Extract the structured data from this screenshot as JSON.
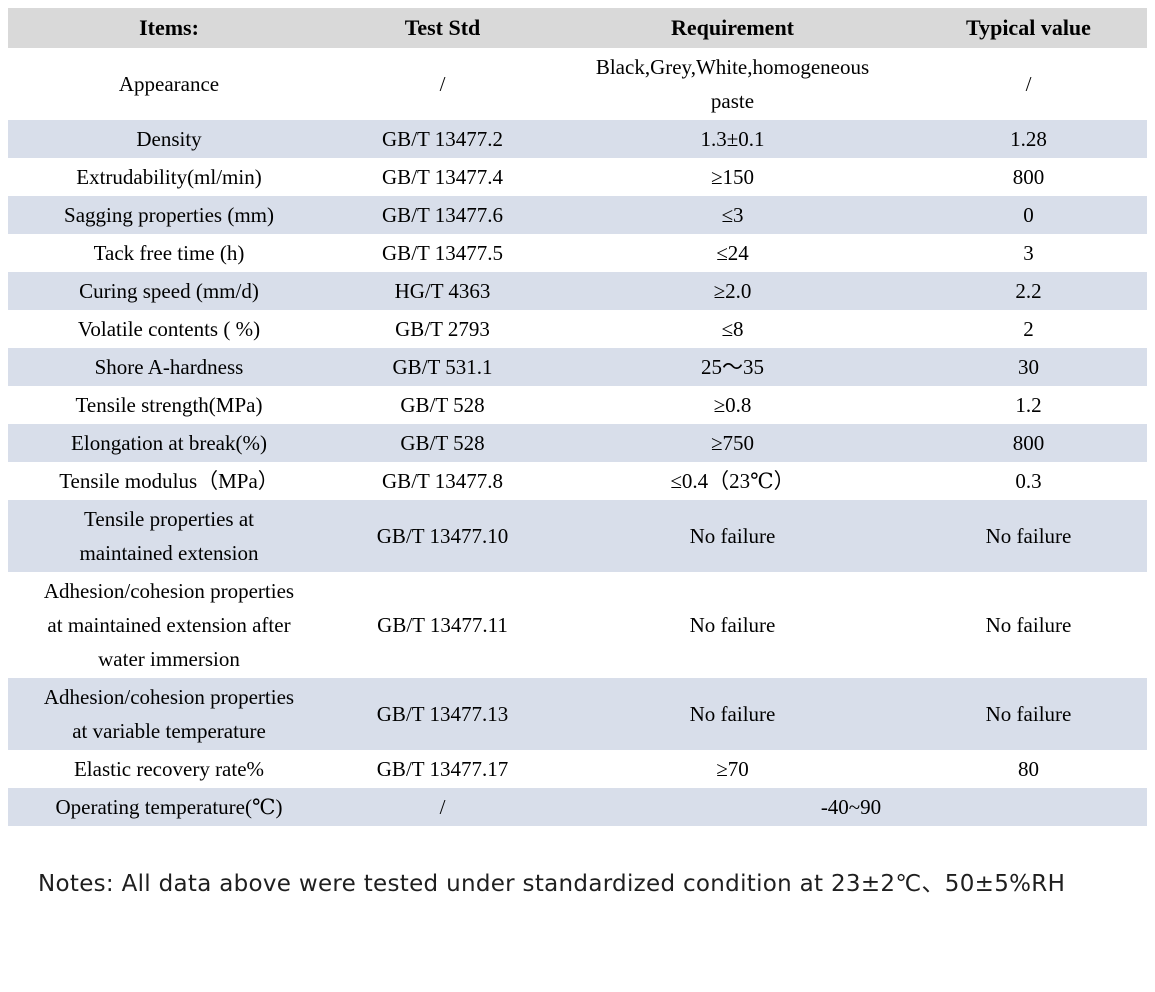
{
  "colors": {
    "header_bg": "#d9d9d9",
    "stripe_bg": "#d8deea",
    "text": "#000000"
  },
  "table": {
    "headers": [
      "Items:",
      "Test Std",
      "Requirement",
      "Typical value"
    ],
    "rows": [
      {
        "item": "Appearance",
        "std": "/",
        "req": "Black,Grey,White,homogeneous paste",
        "typ": "/"
      },
      {
        "item": "Density",
        "std": "GB/T 13477.2",
        "req": "1.3±0.1",
        "typ": "1.28"
      },
      {
        "item": "Extrudability(ml/min)",
        "std": "GB/T 13477.4",
        "req": "≥150",
        "typ": "800"
      },
      {
        "item": "Sagging properties (mm)",
        "std": "GB/T 13477.6",
        "req": "≤3",
        "typ": "0"
      },
      {
        "item": "Tack free time (h)",
        "std": "GB/T 13477.5",
        "req": "≤24",
        "typ": "3"
      },
      {
        "item": "Curing speed (mm/d)",
        "std": "HG/T 4363",
        "req": "≥2.0",
        "typ": "2.2"
      },
      {
        "item": "Volatile contents ( %)",
        "std": "GB/T 2793",
        "req": "≤8",
        "typ": "2"
      },
      {
        "item": "Shore A-hardness",
        "std": "GB/T 531.1",
        "req": "25～35",
        "typ": "30"
      },
      {
        "item": "Tensile strength(MPa)",
        "std": "GB/T 528",
        "req": "≥0.8",
        "typ": "1.2"
      },
      {
        "item": "Elongation at break(%)",
        "std": "GB/T 528",
        "req": "≥750",
        "typ": "800"
      },
      {
        "item": "Tensile modulus（MPa）",
        "std": "GB/T 13477.8",
        "req": "≤0.4（23℃）",
        "typ": "0.3"
      },
      {
        "item": "Tensile properties at maintained extension",
        "std": "GB/T 13477.10",
        "req": "No failure",
        "typ": "No failure"
      },
      {
        "item": "Adhesion/cohesion properties at maintained extension after water immersion",
        "std": "GB/T 13477.11",
        "req": "No failure",
        "typ": "No failure"
      },
      {
        "item": "Adhesion/cohesion properties at variable temperature",
        "std": "GB/T 13477.13",
        "req": "No failure",
        "typ": "No failure"
      },
      {
        "item": "Elastic recovery rate%",
        "std": "GB/T 13477.17",
        "req": "≥70",
        "typ": "80"
      },
      {
        "item": "Operating temperature(℃)",
        "std": "/",
        "req": "-40~90"
      }
    ]
  },
  "notes": "Notes: All data above were tested under standardized condition at 23±2℃、50±5%RH"
}
